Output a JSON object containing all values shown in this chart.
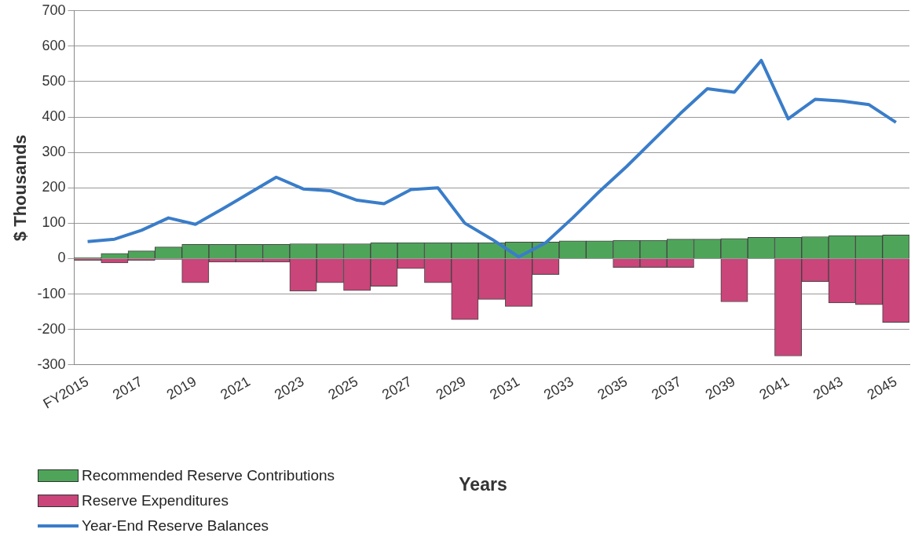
{
  "chart_data": {
    "type": "bar",
    "stacked": true,
    "xlabel": "Years",
    "ylabel": "$ Thousands",
    "categories": [
      "FY2015",
      null,
      "2017",
      null,
      "2019",
      null,
      "2021",
      null,
      "2023",
      null,
      "2025",
      null,
      "2027",
      null,
      "2029",
      null,
      "2031",
      null,
      "2033",
      null,
      "2035",
      null,
      "2037",
      null,
      "2039",
      null,
      "2041",
      null,
      "2043",
      null,
      "2045"
    ],
    "series": [
      {
        "name": "Recommended Reserve Contributions",
        "color": "#4ea55a",
        "values": [
          3,
          15,
          22,
          33,
          40,
          40,
          40,
          40,
          42,
          42,
          42,
          45,
          45,
          45,
          45,
          45,
          47,
          47,
          50,
          50,
          52,
          52,
          55,
          55,
          57,
          60,
          60,
          62,
          65,
          65,
          67
        ]
      },
      {
        "name": "Reserve Expenditures",
        "color": "#c9457a",
        "values": [
          -5,
          -12,
          -5,
          -2,
          -68,
          -10,
          -10,
          -10,
          -92,
          -68,
          -90,
          -78,
          -28,
          -68,
          -172,
          -115,
          -135,
          -45,
          0,
          0,
          -25,
          -25,
          -25,
          0,
          -122,
          0,
          -275,
          -65,
          -125,
          -130,
          -180
        ]
      },
      {
        "name": "Year-End Reserve Balances",
        "type": "line",
        "color": "#3a7dc9",
        "values": [
          48,
          55,
          80,
          115,
          97,
          140,
          185,
          230,
          197,
          192,
          165,
          155,
          195,
          200,
          100,
          55,
          5,
          45,
          115,
          190,
          260,
          335,
          410,
          480,
          470,
          560,
          395,
          450,
          445,
          435,
          385
        ]
      }
    ],
    "ylim": [
      -300,
      700
    ],
    "yticks": [
      -300,
      -200,
      -100,
      0,
      100,
      200,
      300,
      400,
      500,
      600,
      700
    ],
    "grid": "y",
    "legend": "bottom left",
    "marker": "none"
  }
}
